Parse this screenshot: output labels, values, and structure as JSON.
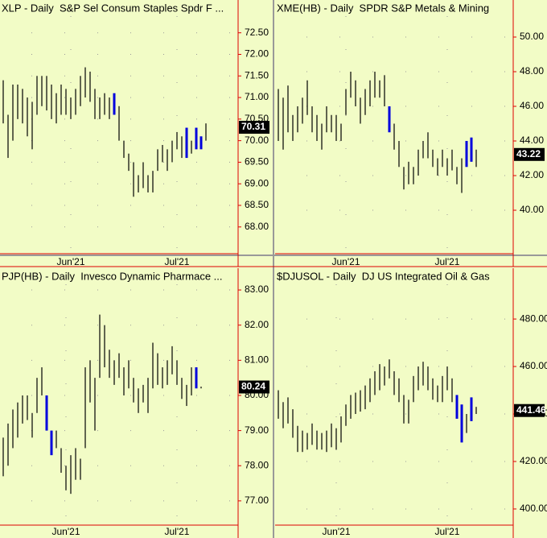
{
  "chart_data": [
    {
      "type": "ohlc",
      "title": "XLP - Daily  S&P Sel Consum Staples Spdr F ...",
      "last": 70.31,
      "categories": [
        null,
        null,
        null,
        null,
        null,
        null,
        null,
        null,
        null,
        null,
        null,
        null,
        null,
        null,
        "Jun'21",
        null,
        null,
        null,
        null,
        null,
        null,
        null,
        null,
        null,
        null,
        null,
        null,
        null,
        null,
        null,
        null,
        null,
        null,
        null,
        null,
        null,
        "Jul'21",
        null,
        null,
        null,
        null,
        null,
        null
      ],
      "highs": [
        71.4,
        70.6,
        71.3,
        71.3,
        71.2,
        71.0,
        70.9,
        71.5,
        71.5,
        71.5,
        71.3,
        71.1,
        71.3,
        71.2,
        71.0,
        71.2,
        71.5,
        71.7,
        71.6,
        71.2,
        71.0,
        71.1,
        71.0,
        71.1,
        70.8,
        70.0,
        69.7,
        69.5,
        69.2,
        69.5,
        69.2,
        69.3,
        69.8,
        69.9,
        69.8,
        70.0,
        70.2,
        70.1,
        70.3,
        70.0,
        70.3,
        70.1,
        70.4
      ],
      "lows": [
        70.4,
        69.6,
        70.0,
        70.5,
        70.4,
        70.1,
        69.8,
        70.6,
        70.8,
        70.7,
        70.5,
        70.4,
        70.6,
        70.6,
        70.5,
        70.6,
        70.8,
        71.0,
        70.9,
        70.5,
        70.5,
        70.6,
        70.5,
        70.6,
        70.0,
        69.6,
        69.3,
        68.7,
        68.8,
        68.9,
        68.8,
        68.8,
        69.3,
        69.5,
        69.3,
        69.5,
        69.8,
        69.6,
        69.6,
        69.7,
        69.8,
        69.8,
        70.0
      ],
      "color": "#000000",
      "highlight": {
        "color": "#0000dd",
        "indices": [
          23,
          38,
          40,
          41
        ]
      },
      "ylim": [
        67.38,
        73.26
      ],
      "yticks": [
        {
          "value": 68,
          "label": "68.00"
        },
        {
          "value": 68.5,
          "label": "68.50"
        },
        {
          "value": 69,
          "label": "69.00"
        },
        {
          "value": 69.5,
          "label": "69.50"
        },
        {
          "value": 70,
          "label": "70.00"
        },
        {
          "value": 70.5,
          "label": "70.50"
        },
        {
          "value": 71,
          "label": "71.00"
        },
        {
          "value": 71.5,
          "label": "71.50"
        },
        {
          "value": 72,
          "label": "72.00"
        },
        {
          "value": 72.5,
          "label": "72.50"
        }
      ]
    },
    {
      "type": "ohlc",
      "title": "XME(HB) - Daily  SPDR S&P Metals & Mining",
      "last": 43.22,
      "categories": [
        null,
        null,
        null,
        null,
        null,
        null,
        null,
        null,
        null,
        null,
        null,
        null,
        null,
        null,
        "Jun'21",
        null,
        null,
        null,
        null,
        null,
        null,
        null,
        null,
        null,
        null,
        null,
        null,
        null,
        null,
        null,
        null,
        null,
        null,
        null,
        null,
        "Jul'21",
        null,
        null,
        null,
        null,
        null,
        null
      ],
      "highs": [
        47.0,
        46.5,
        47.2,
        45.5,
        46.0,
        46.5,
        47.5,
        46.0,
        45.5,
        45.0,
        46.0,
        45.5,
        45.5,
        45.0,
        47.0,
        48.0,
        47.5,
        46.5,
        47.0,
        47.5,
        48.0,
        47.5,
        47.8,
        46.0,
        45.0,
        44.0,
        42.5,
        42.8,
        42.5,
        43.5,
        44.0,
        44.5,
        43.5,
        43.0,
        43.5,
        43.0,
        43.5,
        42.5,
        43.0,
        44.0,
        44.2,
        43.5
      ],
      "lows": [
        44.0,
        43.5,
        44.5,
        44.0,
        44.5,
        45.0,
        45.5,
        44.5,
        44.0,
        43.5,
        44.5,
        44.5,
        44.0,
        44.0,
        45.5,
        46.5,
        46.0,
        45.0,
        45.5,
        46.0,
        46.5,
        46.5,
        46.0,
        44.5,
        43.5,
        42.5,
        41.2,
        41.5,
        41.5,
        42.0,
        43.0,
        43.0,
        42.5,
        42.0,
        42.5,
        42.0,
        42.3,
        41.5,
        41.0,
        42.5,
        42.8,
        42.5
      ],
      "color": "#000000",
      "highlight": {
        "color": "#0000dd",
        "indices": [
          23,
          39,
          40
        ]
      },
      "ylim": [
        37.49,
        52.14
      ],
      "yticks": [
        {
          "value": 40,
          "label": "40.00"
        },
        {
          "value": 42,
          "label": "42.00"
        },
        {
          "value": 44,
          "label": "44.00"
        },
        {
          "value": 46,
          "label": "46.00"
        },
        {
          "value": 48,
          "label": "48.00"
        },
        {
          "value": 50,
          "label": "50.00"
        }
      ]
    },
    {
      "type": "ohlc",
      "title": "PJP(HB) - Daily  Invesco Dynamic Pharmace ...",
      "last": 80.24,
      "categories": [
        null,
        null,
        null,
        null,
        null,
        null,
        null,
        null,
        null,
        null,
        null,
        null,
        null,
        "Jun'21",
        null,
        null,
        null,
        null,
        null,
        null,
        null,
        null,
        null,
        null,
        null,
        null,
        null,
        null,
        null,
        null,
        null,
        null,
        null,
        null,
        null,
        null,
        "Jul'21",
        null,
        null,
        null,
        null,
        null
      ],
      "highs": [
        78.8,
        79.2,
        79.6,
        79.8,
        80.0,
        80.0,
        79.5,
        80.5,
        80.8,
        80.0,
        79.0,
        79.0,
        78.5,
        78.0,
        78.3,
        78.5,
        78.2,
        80.8,
        81.0,
        80.5,
        82.3,
        82.0,
        81.3,
        81.0,
        81.2,
        80.8,
        81.0,
        80.5,
        80.2,
        80.3,
        80.5,
        81.5,
        81.2,
        80.8,
        81.0,
        81.4,
        81.0,
        80.5,
        80.3,
        80.8,
        80.8,
        80.25
      ],
      "lows": [
        77.7,
        78.0,
        78.5,
        78.8,
        79.2,
        79.3,
        78.8,
        79.5,
        80.0,
        79.0,
        78.3,
        78.5,
        77.8,
        77.3,
        77.2,
        77.6,
        77.6,
        78.5,
        79.8,
        79.0,
        80.5,
        80.8,
        80.5,
        80.3,
        80.5,
        80.0,
        80.2,
        79.8,
        79.5,
        79.8,
        79.5,
        80.2,
        80.3,
        80.2,
        80.3,
        80.6,
        80.3,
        79.9,
        79.7,
        80.0,
        80.2,
        80.2
      ],
      "color": "#000000",
      "highlight": {
        "color": "#0000dd",
        "indices": [
          9,
          10,
          40
        ]
      },
      "ylim": [
        76.31,
        83.62
      ],
      "yticks": [
        {
          "value": 77,
          "label": "77.00"
        },
        {
          "value": 78,
          "label": "78.00"
        },
        {
          "value": 79,
          "label": "79.00"
        },
        {
          "value": 80,
          "label": "80.00"
        },
        {
          "value": 81,
          "label": "81.00"
        },
        {
          "value": 82,
          "label": "82.00"
        },
        {
          "value": 83,
          "label": "83.00"
        }
      ]
    },
    {
      "type": "ohlc",
      "title": "$DJUSOL - Daily  DJ US Integrated Oil & Gas",
      "last": 441.46,
      "categories": [
        null,
        null,
        null,
        null,
        null,
        null,
        null,
        null,
        null,
        null,
        null,
        null,
        "Jun'21",
        null,
        null,
        null,
        null,
        null,
        null,
        null,
        null,
        null,
        null,
        null,
        null,
        null,
        null,
        null,
        null,
        null,
        null,
        null,
        null,
        null,
        null,
        "Jul'21",
        null,
        null,
        null,
        null,
        null,
        null
      ],
      "highs": [
        450,
        445,
        447,
        442,
        435,
        433,
        432,
        436,
        433,
        432,
        433,
        436,
        434,
        439,
        444,
        448,
        449,
        450,
        452,
        455,
        458,
        461,
        460,
        463,
        458,
        455,
        448,
        446,
        456,
        460,
        462,
        460,
        455,
        452,
        456,
        460,
        455,
        448,
        444,
        440,
        447,
        443
      ],
      "lows": [
        438,
        434,
        436,
        430,
        424,
        424,
        425,
        427,
        425,
        425,
        424,
        426,
        425,
        428,
        435,
        438,
        440,
        441,
        442,
        445,
        448,
        450,
        452,
        455,
        448,
        445,
        436,
        436,
        445,
        450,
        452,
        450,
        446,
        445,
        445,
        450,
        445,
        438,
        428,
        432,
        437,
        440
      ],
      "color": "#000000",
      "highlight": {
        "color": "#0000dd",
        "indices": [
          37,
          38,
          40
        ]
      },
      "ylim": [
        393.2,
        501.4
      ],
      "yticks": [
        {
          "value": 400,
          "label": "400.00"
        },
        {
          "value": 420,
          "label": "420.00"
        },
        {
          "value": 440,
          "label": "440.00"
        },
        {
          "value": 460,
          "label": "460.00"
        },
        {
          "value": 480,
          "label": "480.00"
        }
      ]
    }
  ]
}
